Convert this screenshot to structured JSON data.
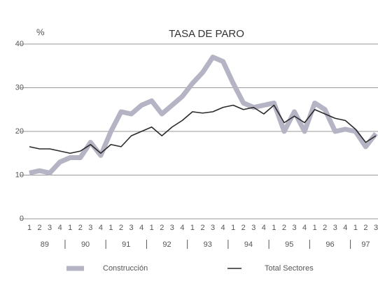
{
  "chart_data": {
    "type": "line",
    "title": "TASA DE PARO",
    "y_label": "%",
    "categories": [
      "1",
      "2",
      "3",
      "4",
      "1",
      "2",
      "3",
      "4",
      "1",
      "2",
      "3",
      "4",
      "1",
      "2",
      "3",
      "4",
      "1",
      "2",
      "3",
      "4",
      "1",
      "2",
      "3",
      "4",
      "1",
      "2",
      "3",
      "4",
      "1",
      "2",
      "3",
      "4",
      "1",
      "2",
      "3"
    ],
    "years": [
      "89",
      "90",
      "91",
      "92",
      "93",
      "94",
      "95",
      "96",
      "97"
    ],
    "series": [
      {
        "name": "Construcción",
        "color": "#b4b4c4",
        "width": 7,
        "values": [
          10.5,
          11,
          10.5,
          13,
          14,
          14,
          17.5,
          14.5,
          20,
          24.5,
          24,
          26,
          27,
          24,
          26,
          28,
          31,
          33.5,
          37,
          36,
          31,
          26.5,
          25.5,
          26,
          26.5,
          20,
          24.5,
          20,
          26.5,
          25,
          20,
          20.5,
          20,
          16.5,
          19.5
        ]
      },
      {
        "name": "Total Sectores",
        "color": "#2a2a2a",
        "width": 1.6,
        "values": [
          16.5,
          16,
          16,
          15.5,
          15,
          15.5,
          17,
          15,
          17,
          16.5,
          19,
          20,
          21,
          19,
          21,
          22.5,
          24.5,
          24.2,
          24.5,
          25.5,
          26,
          25,
          25.5,
          24,
          26,
          22,
          23.5,
          22,
          25,
          24,
          23,
          22.5,
          20.5,
          17.5,
          19
        ]
      }
    ],
    "ylim": [
      0,
      40
    ],
    "yticks": [
      0,
      10,
      20,
      30,
      40
    ],
    "grid": true
  }
}
